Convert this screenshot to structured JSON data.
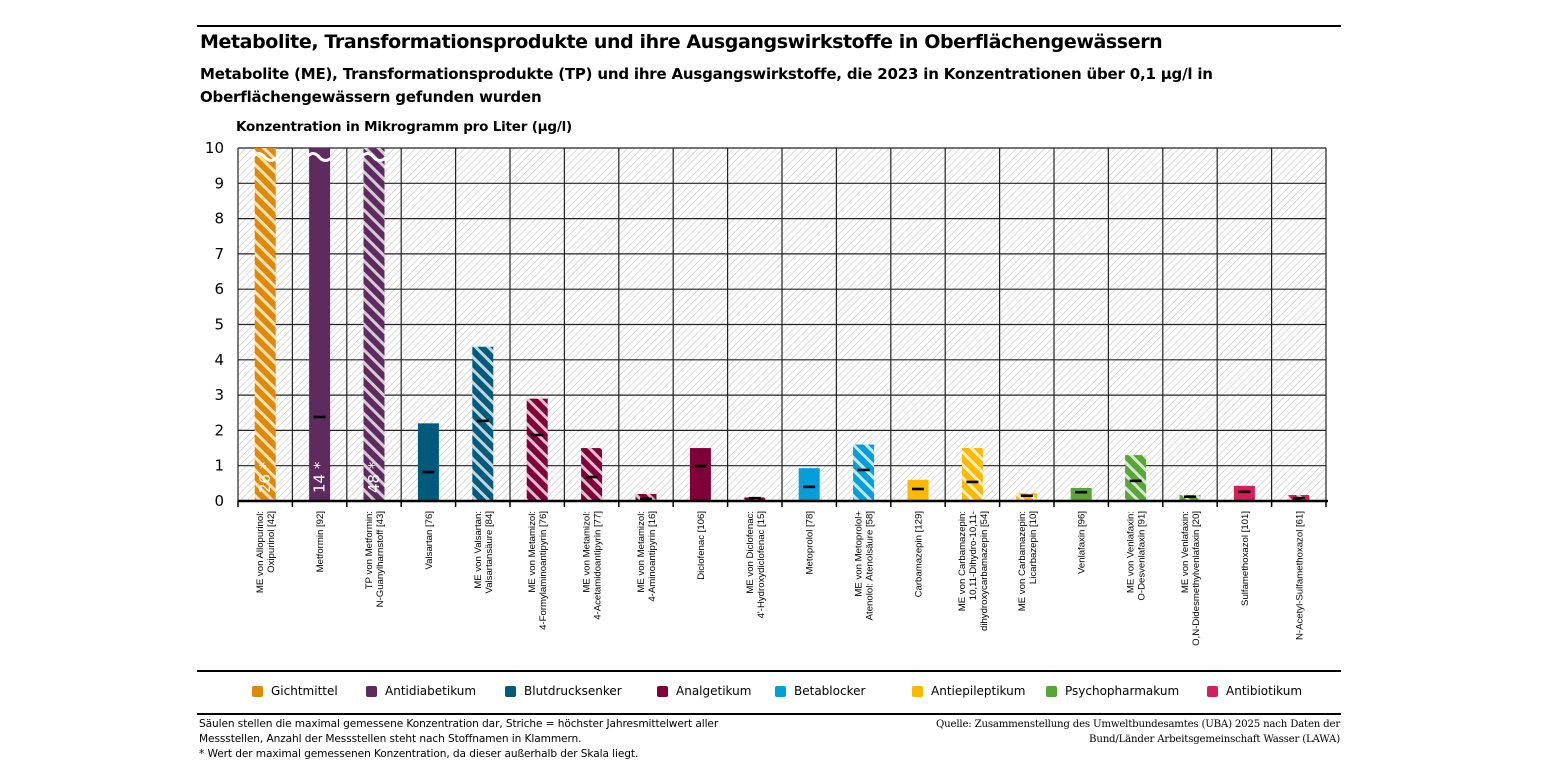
{
  "header": {
    "title": "Metabolite, Transformationsprodukte und ihre Ausgangswirkstoffe in Oberflächengewässern",
    "subtitle": "Metabolite (ME), Transformationsprodukte (TP) und ihre Ausgangswirkstoffe, die 2023 in Konzentrationen über 0,1 µg/l in Oberflächengewässern gefunden wurden"
  },
  "colors": {
    "Gichtmittel": "#dd8a0b",
    "Antidiabetikum": "#5e2b5f",
    "Blutdrucksenker": "#005a7c",
    "Analgetikum": "#7e0139",
    "Betablocker": "#049fd9",
    "Antiepileptikum": "#fbb900",
    "Psychopharmakum": "#5aa537",
    "Antibiotikum": "#d2205a",
    "stripe_light": "#ffe2b3",
    "stripe_default": "#ffffff",
    "grid": "#000000",
    "plot_hatch": "#c8c8c8"
  },
  "chart_data": {
    "type": "bar",
    "title": "Metabolite, Transformationsprodukte und ihre Ausgangswirkstoffe in Oberflächengewässern",
    "ylabel": "Konzentration in Mikrogramm pro Liter (µg/l)",
    "xlabel": "",
    "ylim": [
      0,
      10
    ],
    "yticks": [
      "0",
      "1",
      "2",
      "3",
      "4",
      "5",
      "6",
      "7",
      "8",
      "9",
      "10"
    ],
    "grid": true,
    "legend_position": "bottom",
    "categories": [
      [
        "ME von Allopurinol:",
        "Oxipurinol [42]"
      ],
      [
        "Metformin [92]"
      ],
      [
        "TP von Metformin:",
        "N-Guanylharnstoff [43]"
      ],
      [
        "Valsartan [76]"
      ],
      [
        "ME von Valsartan:",
        "Valsartansäure [84]"
      ],
      [
        "ME von Metamizol:",
        "4-Formylaminoantipyrin [76]"
      ],
      [
        "ME von Metamizol:",
        "4-Acetamidoantipyrin [77]"
      ],
      [
        "ME von Metamizol:",
        "4-Aminoantipyrin [16]"
      ],
      [
        "Diclofenac [106]"
      ],
      [
        "ME von Diclofenac:",
        "4'-Hydroxydiclofenac [15]"
      ],
      [
        "Metoprolol [78]"
      ],
      [
        "ME von Metoprolol+",
        "Atenolol: Atenolsäure [58]"
      ],
      [
        "Carbamazepin [129]"
      ],
      [
        "ME von Carbamazepin:",
        "10,11-Dihydro-10,11-",
        "dihydroxycarbamazepin [54]"
      ],
      [
        "ME von Carbamazepin:",
        "Licarbazepin [10]"
      ],
      [
        "Venlafaxin [96]"
      ],
      [
        "ME von Venlafaxin:",
        "O-Desvenlafaxin [91]"
      ],
      [
        "ME von Venlafaxin:",
        "O,N-Didesmethylvenlafaxin [20]"
      ],
      [
        "Sulfamethoxazol [101]"
      ],
      [
        "N-Acetyl-Sulfamethoxazol [61]"
      ]
    ],
    "series": [
      {
        "name": "Maximal gemessene Konzentration",
        "values": [
          26,
          14,
          48,
          2.2,
          4.37,
          2.9,
          1.5,
          0.2,
          1.5,
          0.1,
          0.93,
          1.6,
          0.6,
          1.5,
          0.22,
          0.37,
          1.3,
          0.17,
          0.43,
          0.17
        ]
      },
      {
        "name": "Höchster Jahresmittelwert aller Messstellen",
        "values": [
          null,
          2.38,
          null,
          0.82,
          2.27,
          1.87,
          0.68,
          0.06,
          0.99,
          0.08,
          0.4,
          0.88,
          0.34,
          0.54,
          0.15,
          0.25,
          0.57,
          0.12,
          0.26,
          0.08
        ]
      }
    ],
    "groups": [
      "Gichtmittel",
      "Antidiabetikum",
      "Antidiabetikum",
      "Blutdrucksenker",
      "Blutdrucksenker",
      "Analgetikum",
      "Analgetikum",
      "Analgetikum",
      "Analgetikum",
      "Analgetikum",
      "Betablocker",
      "Betablocker",
      "Antiepileptikum",
      "Antiepileptikum",
      "Antiepileptikum",
      "Psychopharmakum",
      "Psychopharmakum",
      "Psychopharmakum",
      "Antibiotikum",
      "Antibiotikum"
    ],
    "hatched": [
      true,
      false,
      true,
      false,
      true,
      true,
      true,
      true,
      false,
      true,
      false,
      true,
      false,
      true,
      true,
      false,
      true,
      true,
      false,
      true
    ],
    "out_of_scale_labels": [
      "26 *",
      "14 *",
      "48 *",
      null,
      null,
      null,
      null,
      null,
      null,
      null,
      null,
      null,
      null,
      null,
      null,
      null,
      null,
      null,
      null,
      null
    ]
  },
  "legend": {
    "items": [
      {
        "label": "Gichtmittel",
        "color": "#dd8a0b"
      },
      {
        "label": "Antidiabetikum",
        "color": "#5e2b5f"
      },
      {
        "label": "Blutdrucksenker",
        "color": "#005a7c"
      },
      {
        "label": "Analgetikum",
        "color": "#7e0139"
      },
      {
        "label": "Betablocker",
        "color": "#049fd9"
      },
      {
        "label": "Antiepileptikum",
        "color": "#fbb900"
      },
      {
        "label": "Psychopharmakum",
        "color": "#5aa537"
      },
      {
        "label": "Antibiotikum",
        "color": "#d2205a"
      }
    ]
  },
  "footer": {
    "note_line1": "Säulen stellen die maximal gemessene Konzentration dar, Striche = höchster Jahresmittelwert aller Messstellen, Anzahl der Messstellen steht nach Stoffnamen in Klammern.",
    "note_line2": "* Wert der maximal gemessenen Konzentration, da dieser außerhalb der Skala liegt.",
    "source": "Quelle: Zusammenstellung des Umweltbundesamtes (UBA) 2025 nach Daten der Bund/Länder Arbeitsgemeinschaft Wasser (LAWA)"
  }
}
